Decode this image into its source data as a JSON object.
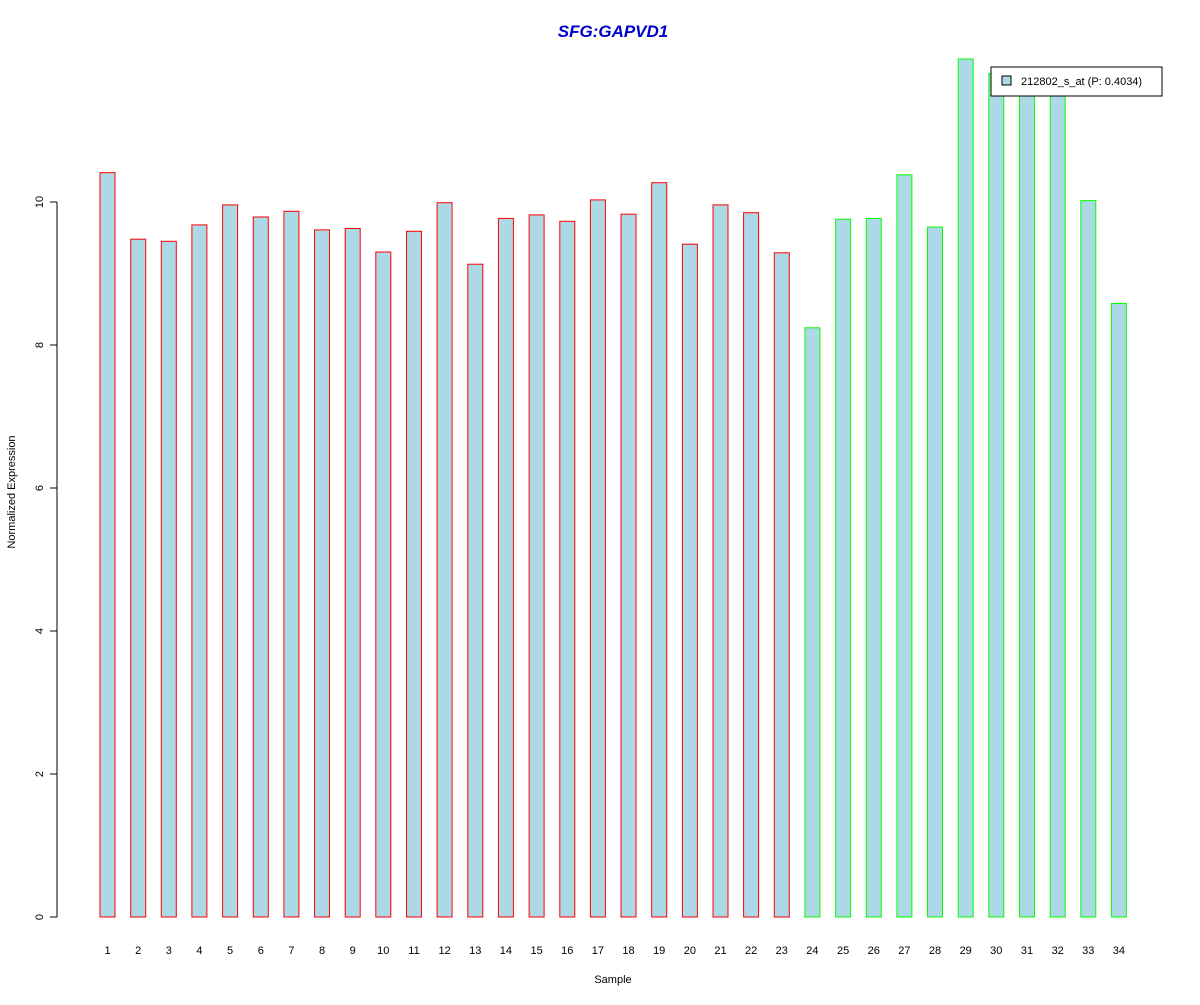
{
  "chart_data": {
    "type": "bar",
    "title": "SFG:GAPVD1",
    "xlabel": "Sample",
    "ylabel": "Normalized Expression",
    "categories": [
      "1",
      "2",
      "3",
      "4",
      "5",
      "6",
      "7",
      "8",
      "9",
      "10",
      "11",
      "12",
      "13",
      "14",
      "15",
      "16",
      "17",
      "18",
      "19",
      "20",
      "21",
      "22",
      "23",
      "24",
      "25",
      "26",
      "27",
      "28",
      "29",
      "30",
      "31",
      "32",
      "33",
      "34"
    ],
    "series": [
      {
        "name": "212802_s_at (P: 0.4034)",
        "values": [
          10.41,
          9.48,
          9.45,
          9.68,
          9.96,
          9.79,
          9.87,
          9.61,
          9.63,
          9.3,
          9.59,
          9.99,
          9.13,
          9.77,
          9.82,
          9.73,
          10.03,
          9.83,
          10.27,
          9.41,
          9.96,
          9.85,
          9.29,
          8.24,
          9.76,
          9.77,
          10.38,
          9.65,
          12.0,
          11.8,
          11.7,
          11.75,
          10.02,
          8.58
        ]
      }
    ],
    "groups": [
      {
        "from": 1,
        "to": 23,
        "border_color": "#ff0000"
      },
      {
        "from": 24,
        "to": 34,
        "border_color": "#00ff00"
      }
    ],
    "ylim": [
      0,
      12
    ],
    "yticks": [
      0,
      2,
      4,
      6,
      8,
      10
    ],
    "grid": false,
    "legend_position": "top-right",
    "colors": {
      "bar_fill": "#add8e6",
      "title": "#0000cc",
      "axis": "#000000"
    }
  }
}
